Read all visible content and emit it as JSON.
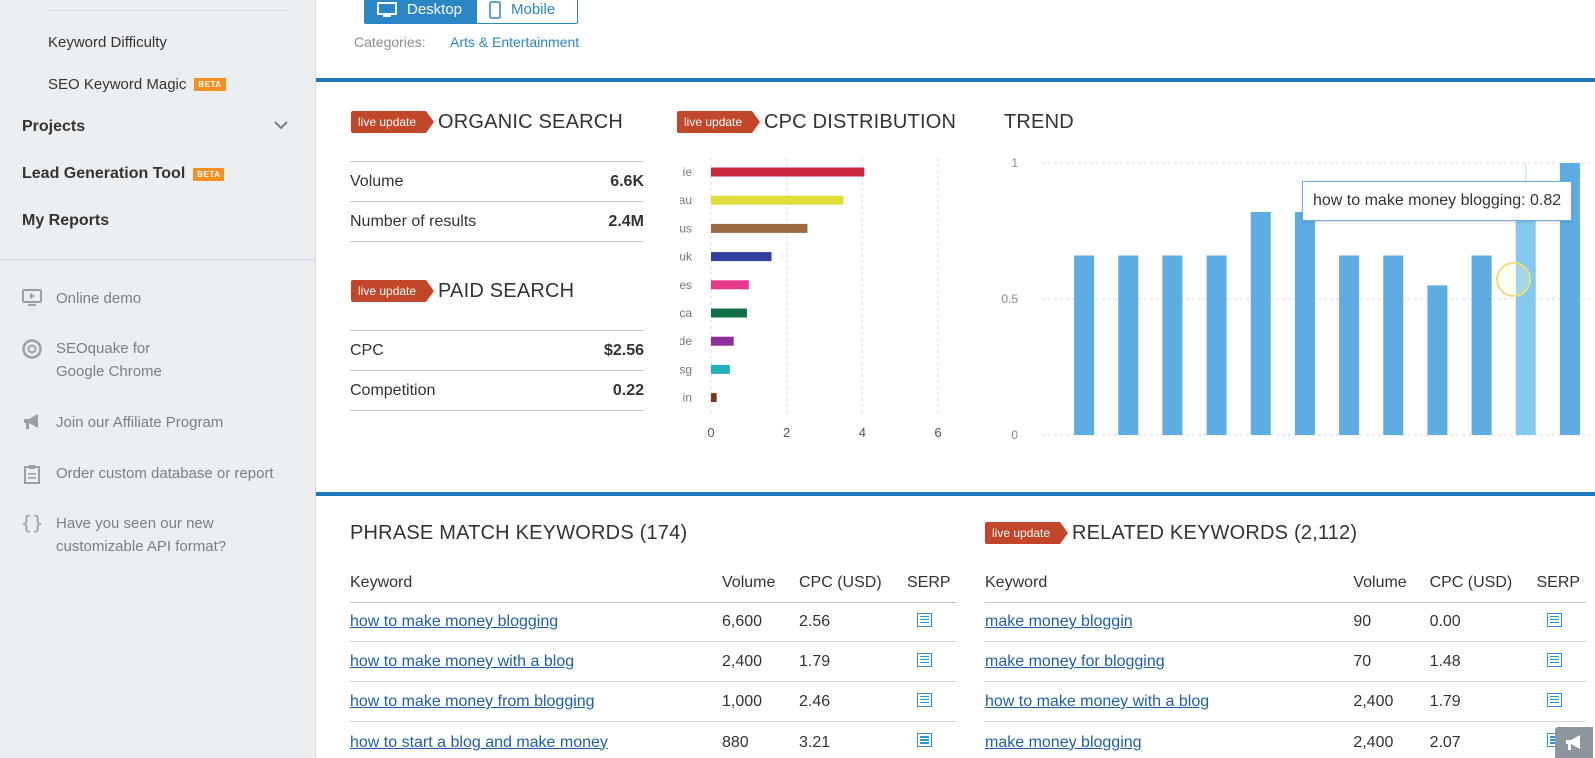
{
  "sidebar": {
    "sub_items": [
      {
        "label": "Keyword Difficulty"
      },
      {
        "label": "SEO Keyword Magic",
        "badge": "BETA"
      }
    ],
    "main_items": [
      {
        "label": "Projects"
      },
      {
        "label": "Lead Generation Tool",
        "badge": "BETA"
      },
      {
        "label": "My Reports"
      }
    ],
    "links": [
      {
        "label": "Online demo",
        "icon": "monitor-icon"
      },
      {
        "label": "SEOquake for Google Chrome",
        "line1": "SEOquake for",
        "line2": "Google Chrome",
        "icon": "chrome-icon"
      },
      {
        "label": "Join our Affiliate Program",
        "icon": "megaphone-icon"
      },
      {
        "label": "Order custom database or report",
        "icon": "clipboard-icon"
      },
      {
        "label": "Have you seen our new customizable API format?",
        "line1": "Have you seen our new",
        "line2": "customizable API format?",
        "icon": "braces-icon"
      }
    ]
  },
  "device_toggle": {
    "desktop": "Desktop",
    "mobile": "Mobile"
  },
  "categories": {
    "label": "Categories:",
    "value": "Arts & Entertainment"
  },
  "live_badge": "live update",
  "organic": {
    "title": "ORGANIC SEARCH",
    "rows": [
      {
        "label": "Volume",
        "value": "6.6K"
      },
      {
        "label": "Number of results",
        "value": "2.4M"
      }
    ]
  },
  "paid": {
    "title": "PAID SEARCH",
    "rows": [
      {
        "label": "CPC",
        "value": "$2.56"
      },
      {
        "label": "Competition",
        "value": "0.22"
      }
    ]
  },
  "cpc_title": "CPC DISTRIBUTION",
  "trend_title": "TREND",
  "tooltip_text": "how to make money blogging: 0.82",
  "chart_data": [
    {
      "type": "bar",
      "orientation": "horizontal",
      "title": "CPC DISTRIBUTION",
      "categories": [
        "ie",
        "au",
        "us",
        "uk",
        "es",
        "ca",
        "de",
        "sg",
        "in"
      ],
      "values": [
        4.05,
        3.5,
        2.55,
        1.6,
        1.0,
        0.95,
        0.6,
        0.5,
        0.15
      ],
      "colors": [
        "#c8283a",
        "#dede3a",
        "#9a6a44",
        "#2f3ea0",
        "#e8388a",
        "#0f7048",
        "#8a2e9a",
        "#22b0b8",
        "#7a3a20"
      ],
      "xticks": [
        "0",
        "2",
        "4",
        "6"
      ],
      "xlim": [
        0,
        6
      ]
    },
    {
      "type": "bar",
      "title": "TREND",
      "values": [
        0.66,
        0.66,
        0.66,
        0.66,
        0.82,
        0.82,
        0.66,
        0.66,
        0.55,
        0.66,
        0.82,
        1.0
      ],
      "highlight_index": 10,
      "yticks": [
        "1",
        "0.5",
        "0"
      ],
      "ylim": [
        0,
        1
      ],
      "color": "#5dade2",
      "highlight_color": "#85c8f2"
    }
  ],
  "phrase": {
    "title": "PHRASE MATCH KEYWORDS (174)",
    "headers": {
      "kw": "Keyword",
      "vol": "Volume",
      "cpc": "CPC (USD)",
      "serp": "SERP"
    },
    "rows": [
      {
        "kw": "how to make money blogging",
        "vol": "6,600",
        "cpc": "2.56"
      },
      {
        "kw": "how to make money with a blog",
        "vol": "2,400",
        "cpc": "1.79"
      },
      {
        "kw": "how to make money from blogging",
        "vol": "1,000",
        "cpc": "2.46"
      },
      {
        "kw": "how to start a blog and make money",
        "vol": "880",
        "cpc": "3.21"
      }
    ]
  },
  "related": {
    "title": "RELATED KEYWORDS (2,112)",
    "headers": {
      "kw": "Keyword",
      "vol": "Volume",
      "cpc": "CPC (USD)",
      "serp": "SERP"
    },
    "rows": [
      {
        "kw": "make money bloggin",
        "vol": "90",
        "cpc": "0.00"
      },
      {
        "kw": "make money for blogging",
        "vol": "70",
        "cpc": "1.48"
      },
      {
        "kw": "how to make money with a blog",
        "vol": "2,400",
        "cpc": "1.79"
      },
      {
        "kw": "make money blogging",
        "vol": "2,400",
        "cpc": "2.07"
      }
    ]
  }
}
